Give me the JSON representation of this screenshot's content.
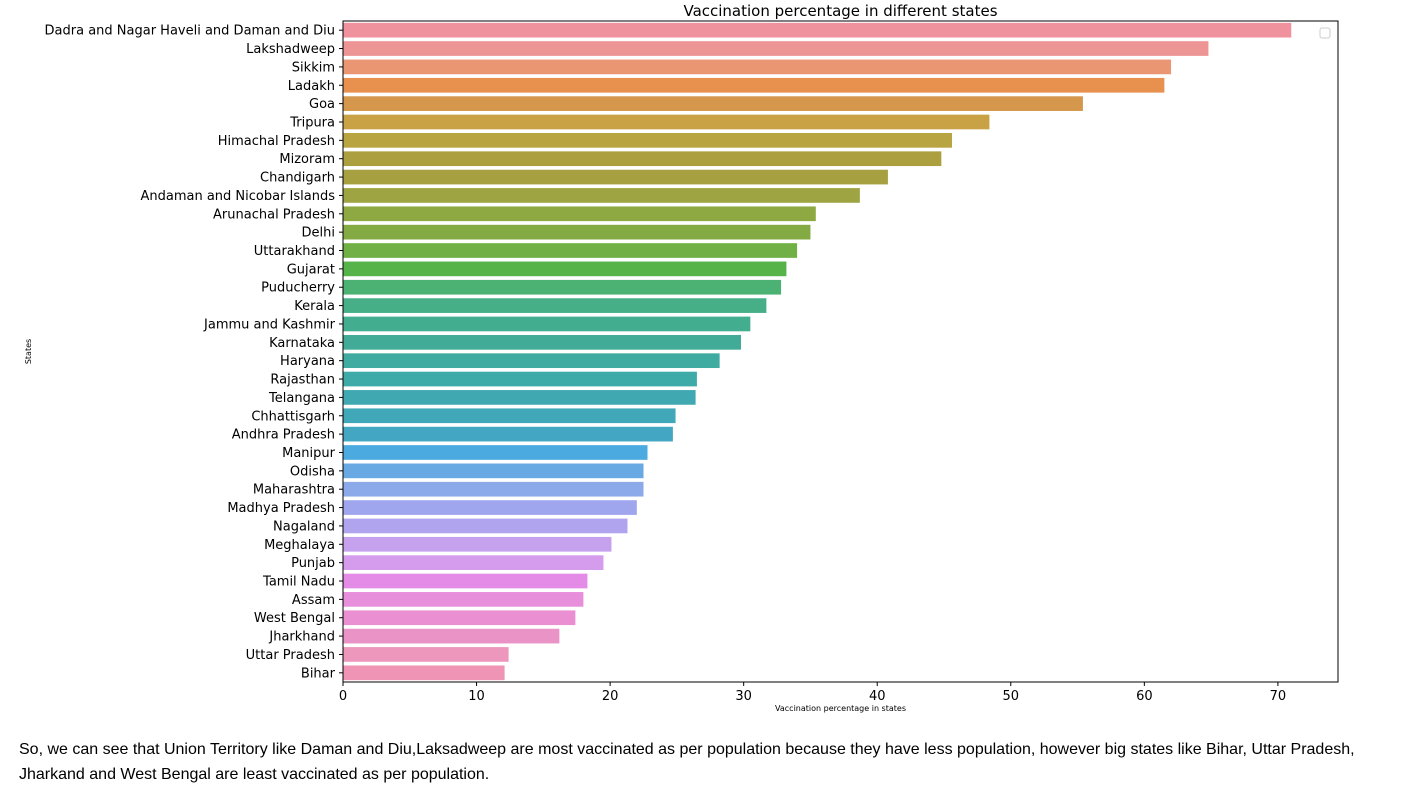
{
  "chart_data": {
    "type": "bar",
    "orientation": "horizontal",
    "title": "Vaccination percentage in different states",
    "xlabel": "Vaccination percentage in states",
    "ylabel": "States",
    "xlim": [
      0,
      74.5
    ],
    "xticks": [
      0,
      10,
      20,
      30,
      40,
      50,
      60,
      70
    ],
    "grid": false,
    "legend": "top-right (empty)",
    "categories": [
      "Dadra and Nagar Haveli and Daman and Diu",
      "Lakshadweep",
      "Sikkim",
      "Ladakh",
      "Goa",
      "Tripura",
      "Himachal Pradesh",
      "Mizoram",
      "Chandigarh",
      "Andaman and Nicobar Islands",
      "Arunachal Pradesh",
      "Delhi",
      "Uttarakhand",
      "Gujarat",
      "Puducherry",
      "Kerala",
      "Jammu and Kashmir",
      "Karnataka",
      "Haryana",
      "Rajasthan",
      "Telangana",
      "Chhattisgarh",
      "Andhra Pradesh",
      "Manipur",
      "Odisha",
      "Maharashtra",
      "Madhya Pradesh",
      "Nagaland",
      "Meghalaya",
      "Punjab",
      "Tamil Nadu",
      "Assam",
      "West Bengal",
      "Jharkhand",
      "Uttar Pradesh",
      "Bihar"
    ],
    "values": [
      71.0,
      64.8,
      62.0,
      61.5,
      55.4,
      48.4,
      45.6,
      44.8,
      40.8,
      38.7,
      35.4,
      35.0,
      34.0,
      33.2,
      32.8,
      31.7,
      30.5,
      29.8,
      28.2,
      26.5,
      26.4,
      24.9,
      24.7,
      22.8,
      22.5,
      22.5,
      22.0,
      21.3,
      20.1,
      19.5,
      18.3,
      18.0,
      17.4,
      16.2,
      12.4,
      12.1
    ],
    "colors": [
      "#f0929e",
      "#ed9594",
      "#ea9673",
      "#e8904e",
      "#d4974b",
      "#c8a245",
      "#b9a442",
      "#ac9f40",
      "#a7a041",
      "#9ea442",
      "#8ea942",
      "#83aa43",
      "#70b045",
      "#55b349",
      "#4cb274",
      "#46af87",
      "#43ad8f",
      "#42ab97",
      "#40aba0",
      "#3eaba9",
      "#3fa8b1",
      "#40a8b8",
      "#43a6c2",
      "#4baae0",
      "#68a8e3",
      "#8ca9ea",
      "#a0a6ee",
      "#b1a4ee",
      "#c6a2ee",
      "#d59bec",
      "#e38be6",
      "#e88fdc",
      "#ea90d2",
      "#ea93c6",
      "#ec97bb",
      "#ef94b4"
    ]
  },
  "caption": {
    "text": "So, we can see that Union Territory like Daman and Diu,Laksadweep are most vaccinated as per population because they have less population, however big states like Bihar, Uttar Pradesh, Jharkand and West Bengal are least vaccinated as per population."
  }
}
